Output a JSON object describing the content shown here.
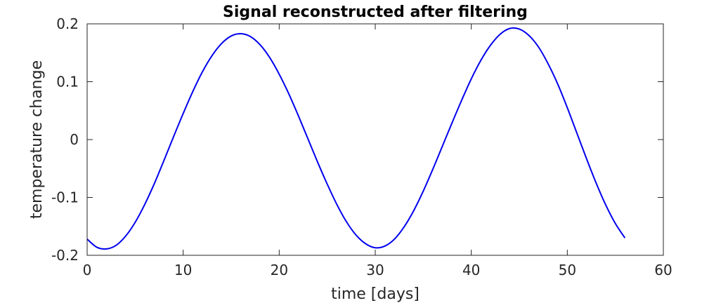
{
  "chart_data": {
    "type": "line",
    "title": "Signal reconstructed after filtering",
    "xlabel": "time [days]",
    "ylabel": "temperature change",
    "xlim": [
      0,
      60
    ],
    "ylim": [
      -0.2,
      0.2
    ],
    "xticks": [
      0,
      10,
      20,
      30,
      40,
      50,
      60
    ],
    "xtick_labels": [
      "0",
      "10",
      "20",
      "30",
      "40",
      "50",
      "60"
    ],
    "yticks": [
      -0.2,
      -0.1,
      0,
      0.1,
      0.2
    ],
    "ytick_labels": [
      "-0.2",
      "-0.1",
      "0",
      "0.1",
      "0.2"
    ],
    "grid": false,
    "colors": {
      "series": "#0000ee",
      "axes": "#262626"
    },
    "series": [
      {
        "color": "#0000ee",
        "x": [
          0,
          1,
          2,
          3,
          4,
          5,
          6,
          7,
          8,
          9,
          10,
          11,
          12,
          13,
          14,
          15,
          16,
          17,
          18,
          19,
          20,
          21,
          22,
          23,
          24,
          25,
          26,
          27,
          28,
          29,
          30,
          31,
          32,
          33,
          34,
          35,
          36,
          37,
          38,
          39,
          40,
          41,
          42,
          43,
          44,
          45,
          46,
          47,
          48,
          49,
          50,
          51,
          52,
          53,
          54,
          55,
          56
        ],
        "y": [
          -0.172,
          -0.186,
          -0.189,
          -0.183,
          -0.167,
          -0.143,
          -0.112,
          -0.076,
          -0.036,
          0.005,
          0.045,
          0.083,
          0.117,
          0.145,
          0.166,
          0.179,
          0.183,
          0.178,
          0.164,
          0.142,
          0.113,
          0.079,
          0.041,
          0.001,
          -0.039,
          -0.077,
          -0.112,
          -0.142,
          -0.165,
          -0.18,
          -0.187,
          -0.184,
          -0.172,
          -0.151,
          -0.123,
          -0.089,
          -0.051,
          -0.011,
          0.029,
          0.068,
          0.105,
          0.137,
          0.163,
          0.182,
          0.192,
          0.191,
          0.18,
          0.16,
          0.131,
          0.096,
          0.055,
          0.011,
          -0.033,
          -0.075,
          -0.113,
          -0.145,
          -0.17
        ]
      }
    ]
  }
}
